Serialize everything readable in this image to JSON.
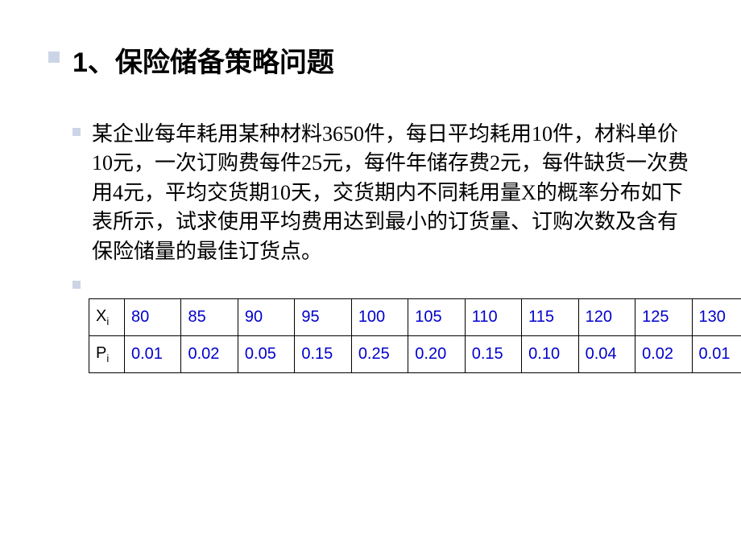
{
  "title": "1、保险储备策略问题",
  "body": "某企业每年耗用某种材料3650件，每日平均耗用10件，材料单价10元，一次订购费每件25元，每件年储存费2元，每件缺货一次费用4元，平均交货期10天，交货期内不同耗用量X的概率分布如下表所示，试求使用平均费用达到最小的订货量、订购次数及含有保险储量的最佳订货点。",
  "table": {
    "row1_label_main": "X",
    "row1_label_sub": "i",
    "row2_label_main": "P",
    "row2_label_sub": "i",
    "x": [
      "80",
      "85",
      "90",
      "95",
      "100",
      "105",
      "110",
      "115",
      "120",
      "125",
      "130"
    ],
    "p": [
      "0.01",
      "0.02",
      "0.05",
      "0.15",
      "0.25",
      "0.20",
      "0.15",
      "0.10",
      "0.04",
      "0.02",
      "0.01"
    ]
  },
  "colors": {
    "bullet": "#ccd5e6",
    "value_text": "#0000cc",
    "label_text": "#000000",
    "border": "#000000"
  }
}
